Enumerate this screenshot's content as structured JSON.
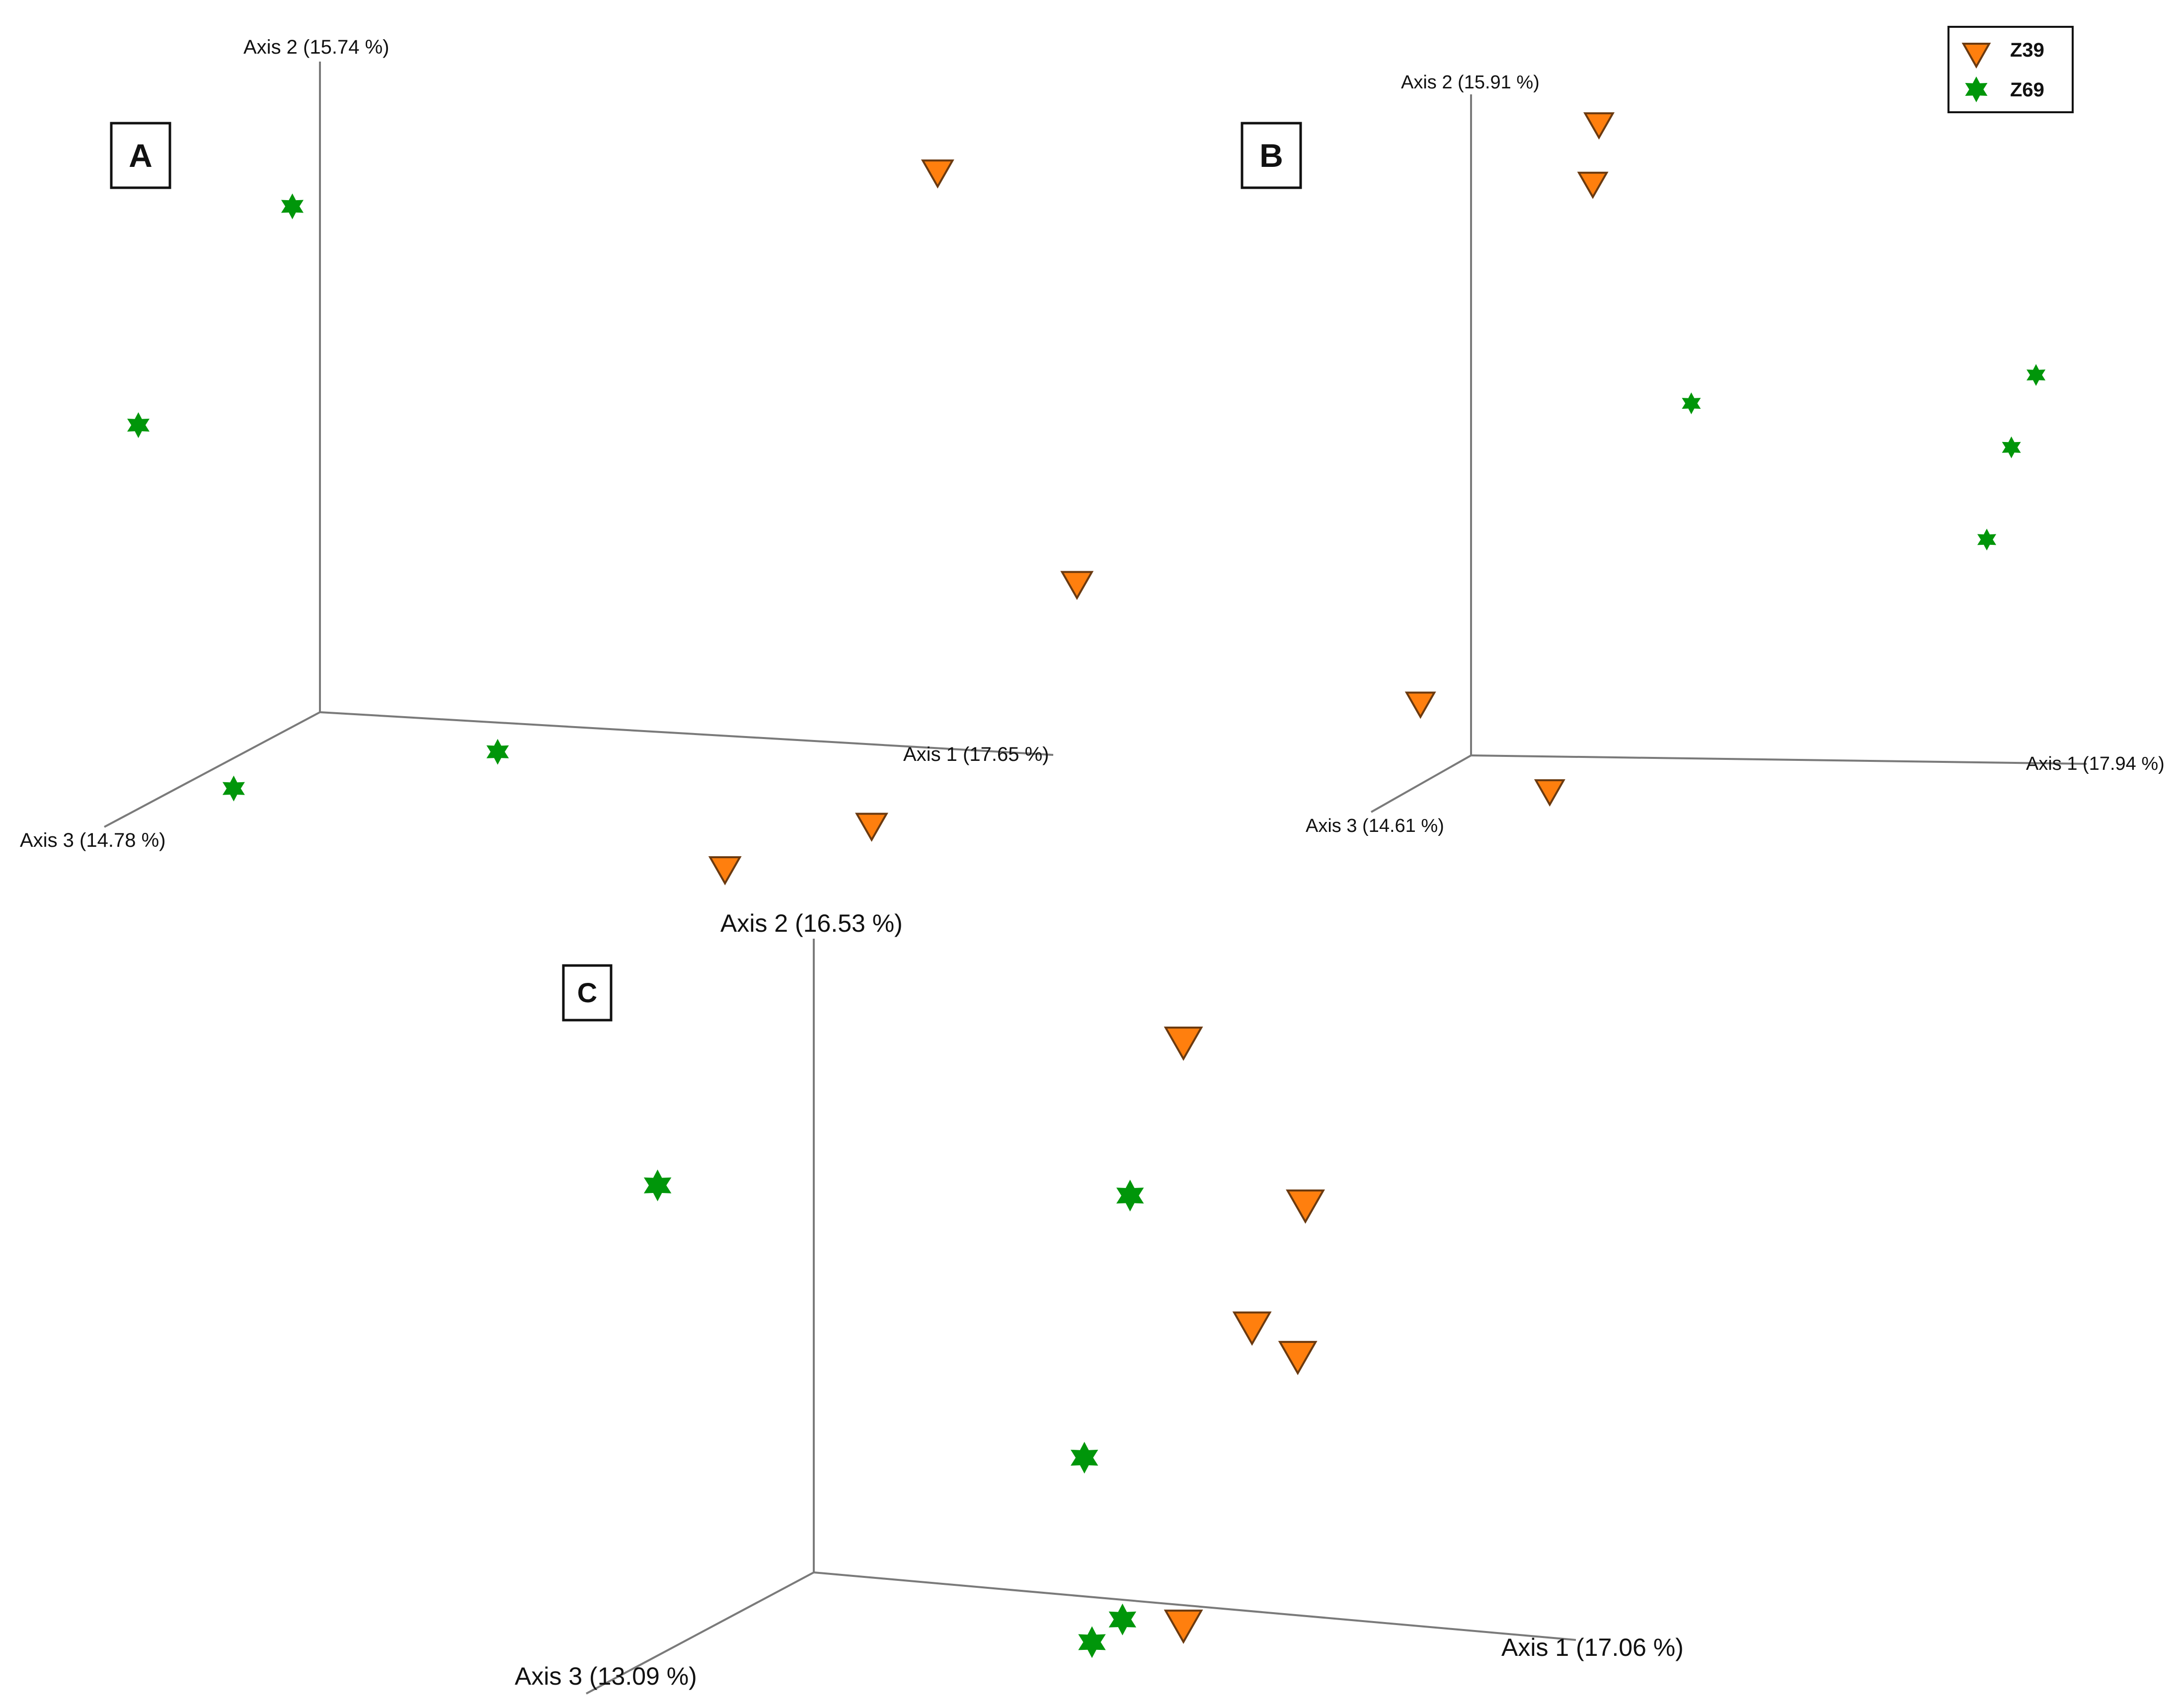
{
  "legend": {
    "entries": [
      {
        "label": "Z39",
        "marker": "triangle-down",
        "color": "#FF7F0E"
      },
      {
        "label": "Z69",
        "marker": "star",
        "color": "#00960A"
      }
    ]
  },
  "colors": {
    "axis": "#7a7a7a",
    "triangle_fill": "#FF7F0E",
    "triangle_stroke": "#6b3a10",
    "star_fill": "#00960A",
    "text": "#111111"
  },
  "chart_data": [
    {
      "panel": "A",
      "type": "scatter",
      "projection": "3d",
      "axes": {
        "x": {
          "label": "Axis 1 (17.65 %)"
        },
        "y": {
          "label": "Axis 2 (15.74 %)"
        },
        "z": {
          "label": "Axis 3 (14.78 %)"
        }
      },
      "series": [
        {
          "name": "Z39",
          "marker": "triangle-down",
          "points": [
            {
              "x": 0.91,
              "y": 0.93,
              "z": 0.23
            },
            {
              "x": 1.1,
              "y": 0.31,
              "z": 0.23
            },
            {
              "x": 0.82,
              "y": -0.08,
              "z": 0.23
            },
            {
              "x": 0.62,
              "y": -0.16,
              "z": 0.23
            }
          ]
        },
        {
          "name": "Z69",
          "marker": "star",
          "points": [
            {
              "x": 0.03,
              "y": 0.82,
              "z": 0.23
            },
            {
              "x": -0.18,
              "y": 0.47,
              "z": 0.23
            },
            {
              "x": 0.31,
              "y": 0.0,
              "z": 0.23
            },
            {
              "x": -0.05,
              "y": -0.08,
              "z": 0.23
            }
          ]
        }
      ]
    },
    {
      "panel": "B",
      "type": "scatter",
      "projection": "3d",
      "axes": {
        "x": {
          "label": "Axis 1 (17.94 %)"
        },
        "y": {
          "label": "Axis 2 (15.91 %)"
        },
        "z": {
          "label": "Axis 3 (14.61 %)"
        }
      },
      "series": [
        {
          "name": "Z39",
          "marker": "triangle-down",
          "points": [
            {
              "x": 0.25,
              "y": 0.98,
              "z": 0.26
            },
            {
              "x": 0.24,
              "y": 0.89,
              "z": 0.26
            },
            {
              "x": -0.04,
              "y": 0.1,
              "z": 0.26
            },
            {
              "x": 0.17,
              "y": -0.03,
              "z": 0.26
            }
          ]
        },
        {
          "name": "Z69",
          "marker": "star",
          "points": [
            {
              "x": 0.4,
              "y": 0.56,
              "z": 0.26
            },
            {
              "x": 0.96,
              "y": 0.61,
              "z": 0.26
            },
            {
              "x": 0.92,
              "y": 0.5,
              "z": 0.26
            },
            {
              "x": 0.88,
              "y": 0.36,
              "z": 0.26
            }
          ]
        }
      ]
    },
    {
      "panel": "C",
      "type": "scatter",
      "projection": "3d",
      "axes": {
        "x": {
          "label": "Axis 1 (17.06 %)"
        },
        "y": {
          "label": "Axis 2 (16.53 %)"
        },
        "z": {
          "label": "Axis 3 (13.09 %)"
        }
      },
      "series": [
        {
          "name": "Z39",
          "marker": "triangle-down",
          "points": [
            {
              "x": 0.5,
              "y": 0.9,
              "z": 0.05
            },
            {
              "x": 0.66,
              "y": 0.66,
              "z": 0.05
            },
            {
              "x": 0.59,
              "y": 0.46,
              "z": 0.05
            },
            {
              "x": 0.65,
              "y": 0.42,
              "z": 0.05
            },
            {
              "x": 0.5,
              "y": -0.02,
              "z": 0.05
            }
          ]
        },
        {
          "name": "Z69",
          "marker": "star",
          "points": [
            {
              "x": 0.43,
              "y": 0.65,
              "z": 0.05
            },
            {
              "x": -0.19,
              "y": 0.6,
              "z": 0.05
            },
            {
              "x": 0.37,
              "y": 0.23,
              "z": 0.05
            },
            {
              "x": 0.42,
              "y": -0.02,
              "z": 0.05
            },
            {
              "x": 0.38,
              "y": -0.06,
              "z": 0.05
            }
          ]
        }
      ]
    }
  ]
}
